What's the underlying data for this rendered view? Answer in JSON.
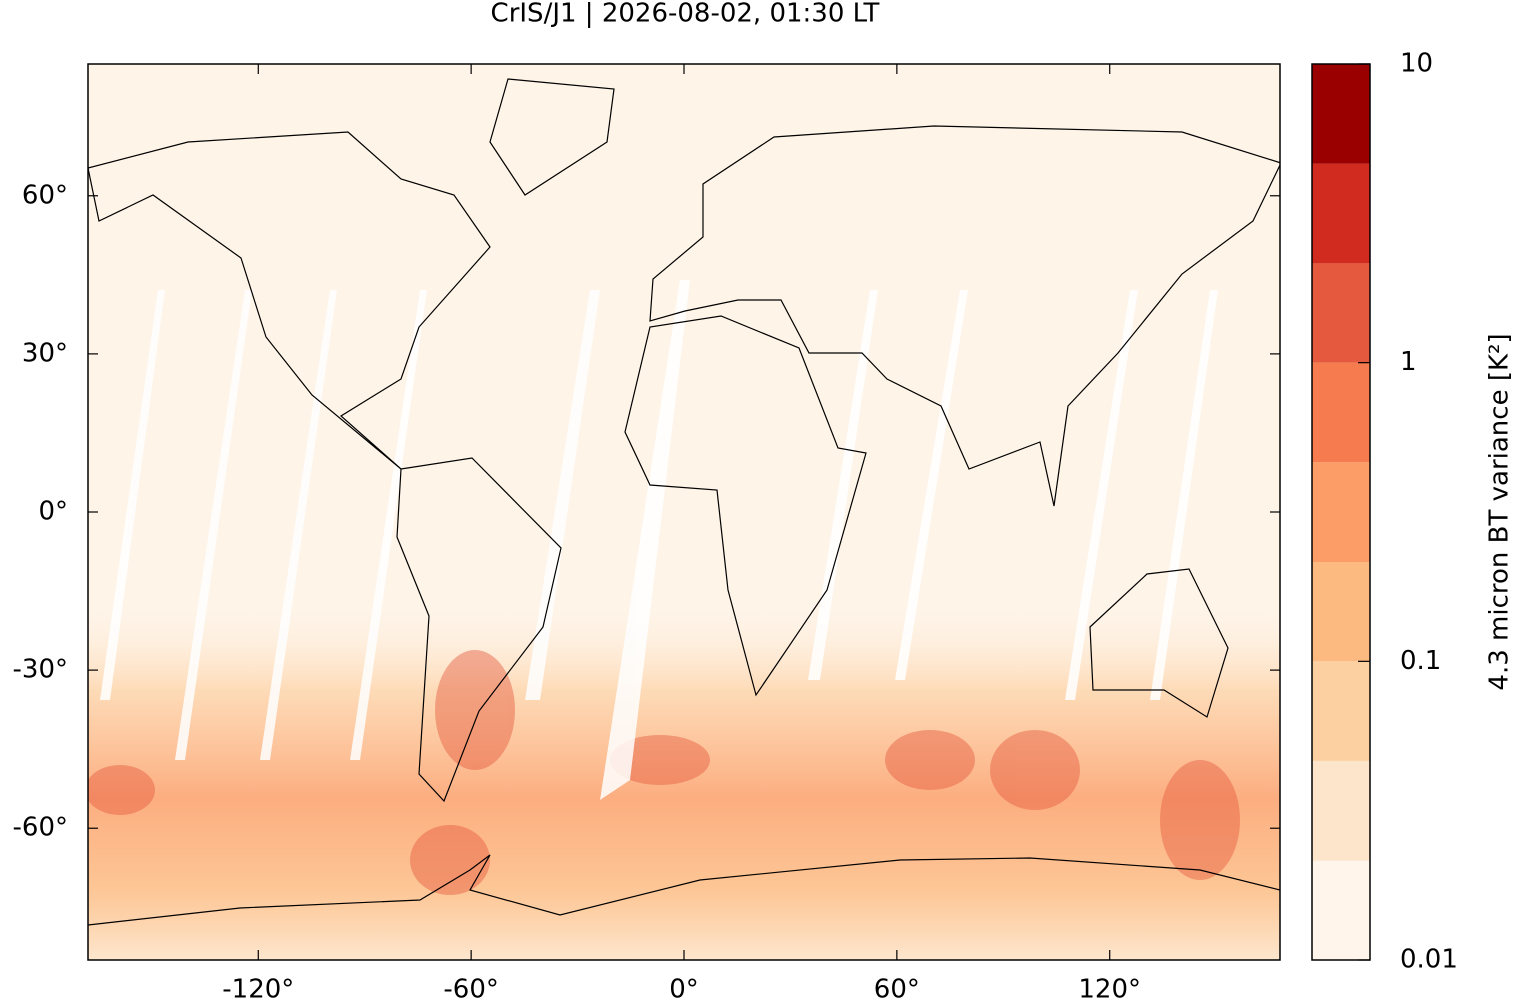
{
  "chart_data": {
    "type": "map",
    "title": "CrIS/J1 | 2026-08-02, 01:30 LT",
    "xlim": [
      -168,
      168
    ],
    "ylim": [
      -85,
      85
    ],
    "xticks": [
      {
        "value": -120,
        "label": "-120°"
      },
      {
        "value": -60,
        "label": "-60°"
      },
      {
        "value": 0,
        "label": "0°"
      },
      {
        "value": 60,
        "label": "60°"
      },
      {
        "value": 120,
        "label": "120°"
      }
    ],
    "yticks": [
      {
        "value": 60,
        "label": "60°"
      },
      {
        "value": 30,
        "label": "30°"
      },
      {
        "value": 0,
        "label": "0°"
      },
      {
        "value": -30,
        "label": "-30°"
      },
      {
        "value": -60,
        "label": "-60°"
      }
    ],
    "colorbar": {
      "label": "4.3 micron BT variance [K²]",
      "log_scale": true,
      "lim": [
        0.01,
        10
      ],
      "levels": [
        0.01,
        0.0215,
        0.0464,
        0.1,
        0.215,
        0.464,
        1,
        2.15,
        4.64,
        10
      ],
      "colors": [
        "#fff5eb",
        "#fde5cb",
        "#fdd0a2",
        "#fdba80",
        "#fc9c66",
        "#f67c4f",
        "#e55a3e",
        "#d02b1e",
        "#9b0000"
      ],
      "ticks": [
        10,
        1,
        0.1,
        0.01
      ]
    }
  }
}
